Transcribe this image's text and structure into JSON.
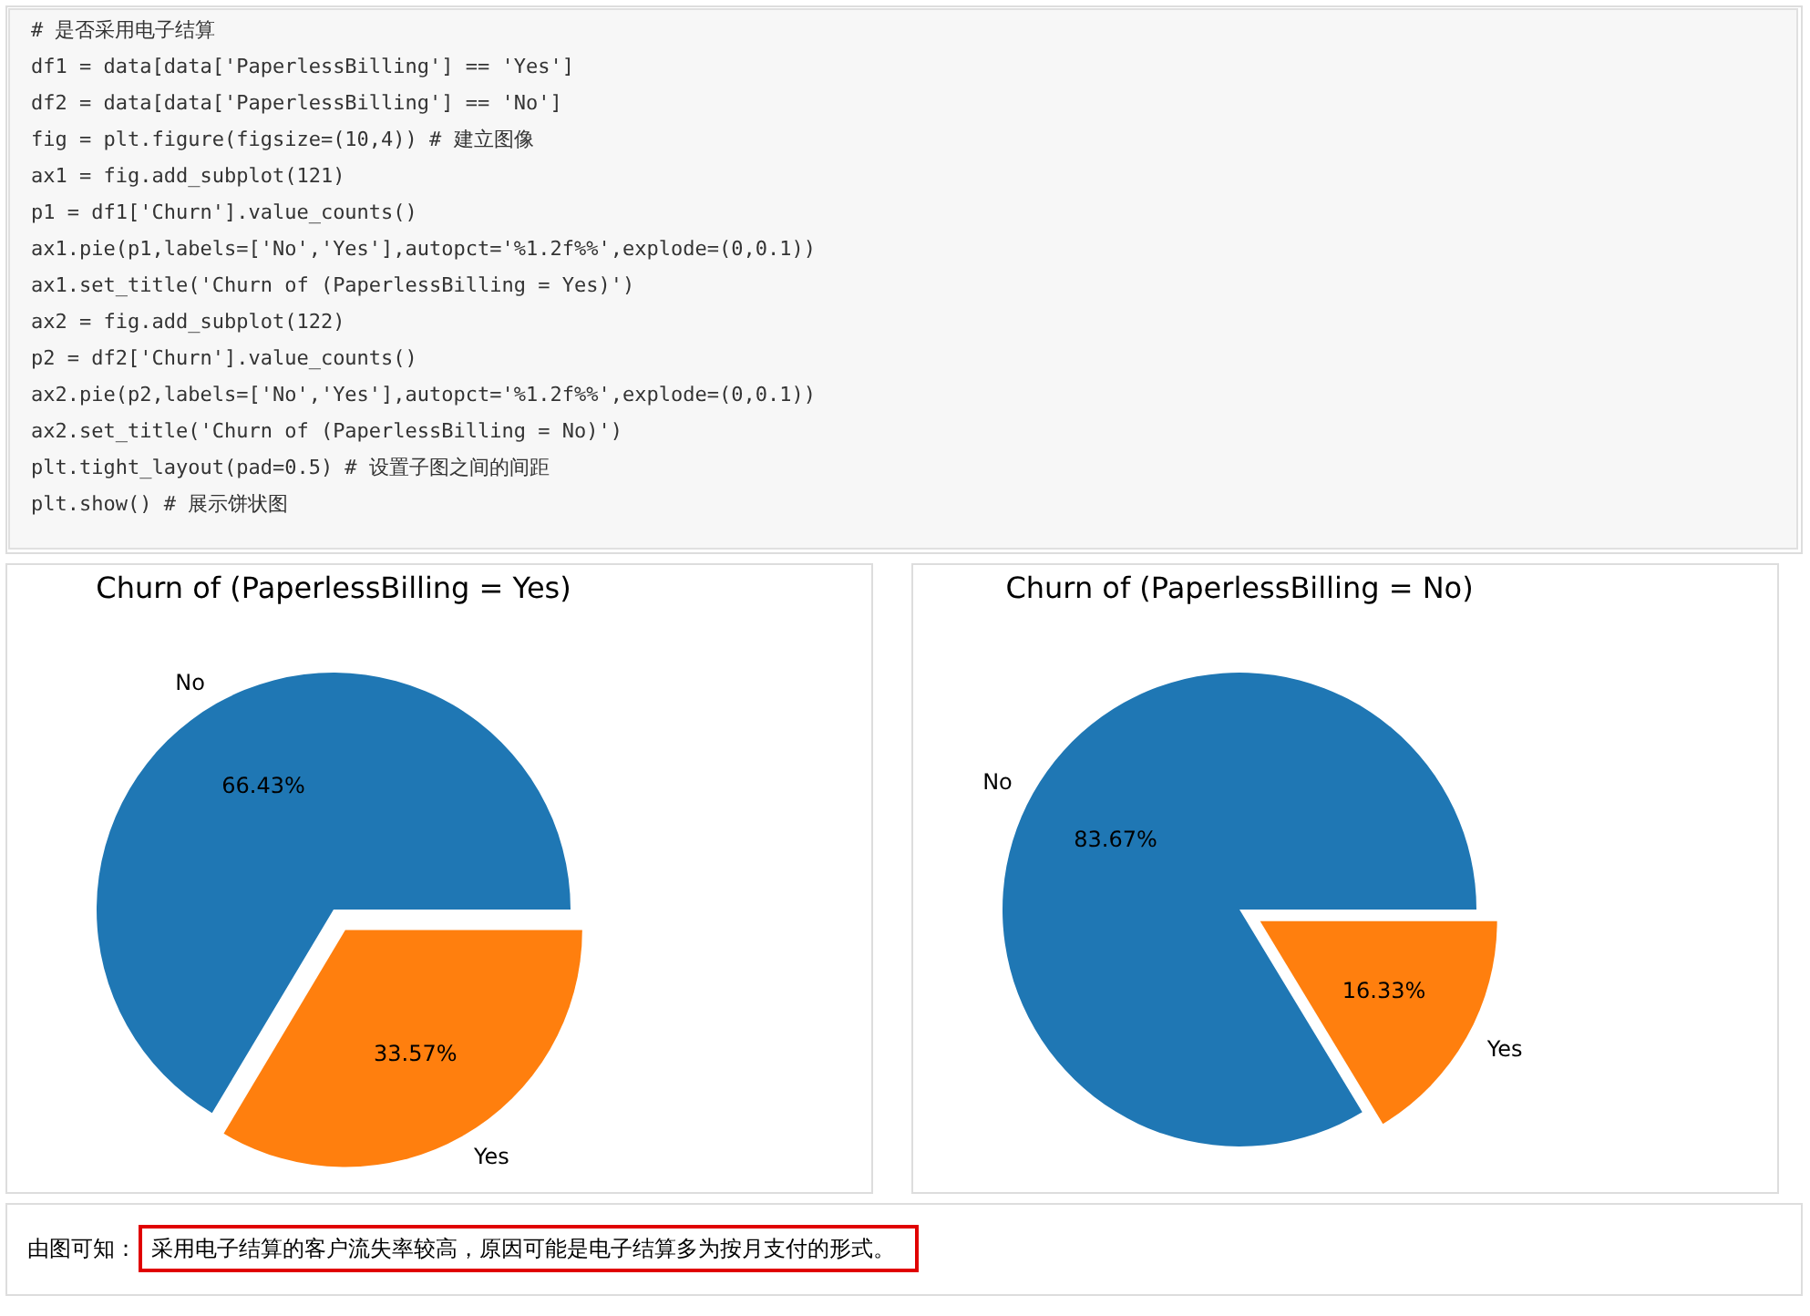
{
  "chart_data": [
    {
      "type": "other",
      "annotations": [
        "# 是否采用电子结算",
        "df1 = data[data['PaperlessBilling'] == 'Yes']",
        "df2 = data[data['PaperlessBilling'] == 'No']",
        "fig = plt.figure(figsize=(10,4)) # 建立图像",
        "ax1 = fig.add_subplot(121)",
        "p1 = df1['Churn'].value_counts()",
        "ax1.pie(p1,labels=['No','Yes'],autopct='%1.2f%%',explode=(0,0.1))",
        "ax1.set_title('Churn of (PaperlessBilling = Yes)')",
        "ax2 = fig.add_subplot(122)",
        "p2 = df2['Churn'].value_counts()",
        "ax2.pie(p2,labels=['No','Yes'],autopct='%1.2f%%',explode=(0,0.1))",
        "ax2.set_title('Churn of (PaperlessBilling = No)')",
        "plt.tight_layout(pad=0.5)    # 设置子图之间的间距",
        "plt.show() # 展示饼状图"
      ]
    },
    {
      "type": "pie",
      "title": "Churn of (PaperlessBilling = Yes)",
      "categories": [
        "No",
        "Yes"
      ],
      "values": [
        66.43,
        33.57
      ],
      "colors": [
        "#1f77b4",
        "#ff7f0e"
      ],
      "value_labels": [
        "66.43%",
        "33.57%"
      ]
    },
    {
      "type": "pie",
      "title": "Churn of (PaperlessBilling = No)",
      "categories": [
        "No",
        "Yes"
      ],
      "values": [
        83.67,
        16.33
      ],
      "colors": [
        "#1f77b4",
        "#ff7f0e"
      ],
      "value_labels": [
        "83.67%",
        "16.33%"
      ]
    },
    {
      "type": "other",
      "annotations": [
        "由图可知：",
        "采用电子结算的客户流失率较高，原因可能是电子结算多为按月支付的形式。"
      ]
    }
  ]
}
